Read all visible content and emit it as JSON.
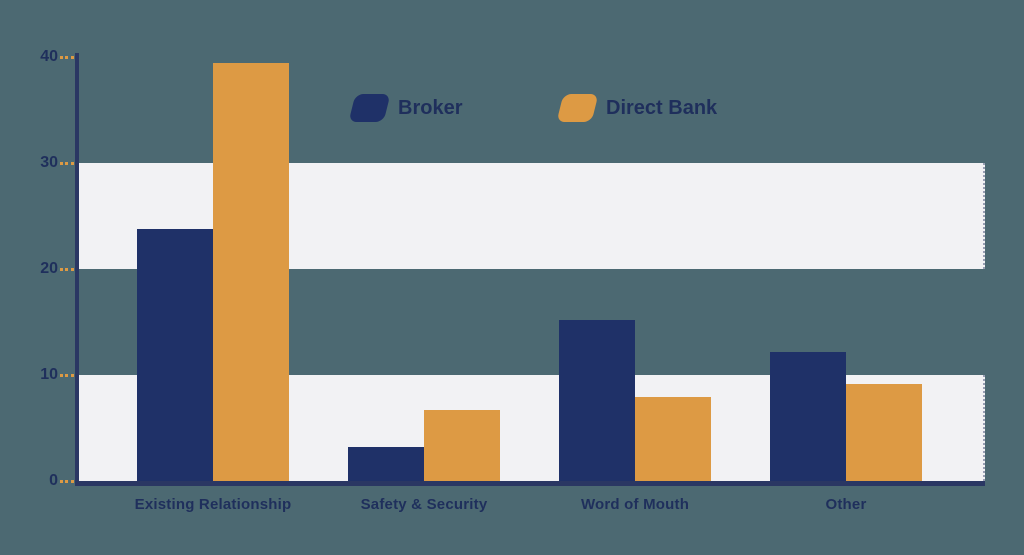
{
  "page": {
    "background_color": "#4C6972"
  },
  "chart_data": {
    "type": "bar",
    "title": "",
    "xlabel": "",
    "ylabel": "",
    "categories": [
      "Existing Relationship",
      "Safety & Security",
      "Word of Mouth",
      "Other"
    ],
    "series": [
      {
        "name": "Broker",
        "color": "#1F3168",
        "values": [
          23.8,
          3.2,
          15.2,
          12.2
        ]
      },
      {
        "name": "Direct Bank",
        "color": "#DD9A44",
        "values": [
          39.4,
          6.7,
          7.9,
          9.2
        ]
      }
    ],
    "ylim": [
      0,
      40
    ],
    "yticks": [
      0,
      10,
      20,
      30,
      40
    ],
    "grid": "alternating horizontal light bands for ranges 0-10 and 20-30",
    "band_color": "#F2F2F4",
    "axis_color": "#2A3763",
    "tick_color": "#DD9A44",
    "label_color": "#1F2F5C",
    "legend_position": "top-center"
  }
}
